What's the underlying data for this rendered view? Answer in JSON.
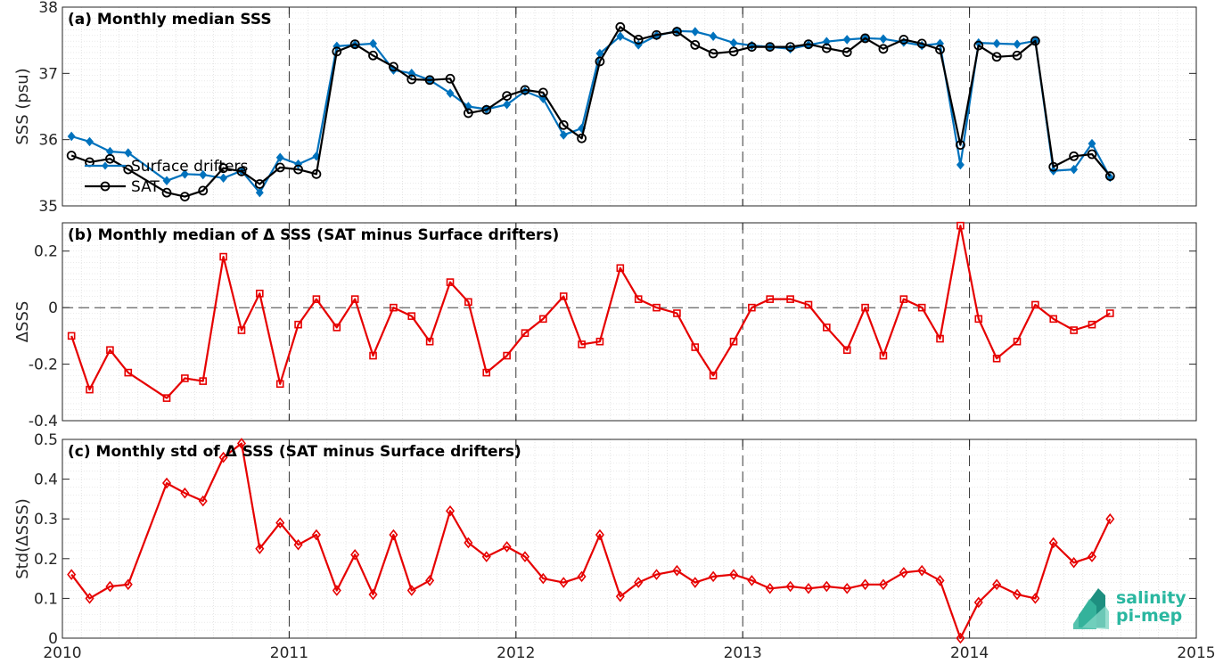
{
  "chart_data": [
    {
      "type": "line",
      "title": "(a) Monthly median SSS",
      "xlabel": "",
      "ylabel": "SSS (psu)",
      "xlim": [
        2010,
        2015
      ],
      "ylim": [
        35,
        38
      ],
      "yticks": [
        35,
        36,
        37,
        38
      ],
      "ytick_labels": [
        "35",
        "36",
        "37",
        "38"
      ],
      "grid": true,
      "legend": "bottom-left",
      "series": [
        {
          "name": "Surface drifters",
          "color": "#0072BD",
          "marker": "diamond",
          "x": [
            2010.04,
            2010.12,
            2010.21,
            2010.29,
            2010.46,
            2010.54,
            2010.62,
            2010.71,
            2010.79,
            2010.87,
            2010.96,
            2011.04,
            2011.12,
            2011.21,
            2011.29,
            2011.37,
            2011.46,
            2011.54,
            2011.62,
            2011.71,
            2011.79,
            2011.87,
            2011.96,
            2012.04,
            2012.12,
            2012.21,
            2012.29,
            2012.37,
            2012.46,
            2012.54,
            2012.62,
            2012.71,
            2012.79,
            2012.87,
            2012.96,
            2013.04,
            2013.12,
            2013.21,
            2013.29,
            2013.37,
            2013.46,
            2013.54,
            2013.62,
            2013.71,
            2013.79,
            2013.87,
            2013.96,
            2014.04,
            2014.12,
            2014.21,
            2014.29,
            2014.37,
            2014.46,
            2014.54,
            2014.62
          ],
          "values": [
            36.05,
            35.97,
            35.82,
            35.8,
            35.38,
            35.48,
            35.47,
            35.42,
            35.53,
            35.2,
            35.73,
            35.63,
            35.75,
            37.41,
            37.43,
            37.45,
            37.05,
            37.0,
            36.9,
            36.7,
            36.5,
            36.46,
            36.53,
            36.73,
            36.62,
            36.07,
            36.17,
            37.3,
            37.56,
            37.43,
            37.57,
            37.64,
            37.63,
            37.56,
            37.46,
            37.42,
            37.4,
            37.37,
            37.43,
            37.48,
            37.51,
            37.53,
            37.52,
            37.47,
            37.42,
            37.45,
            35.62,
            37.46,
            37.45,
            37.44,
            37.49,
            35.53,
            35.55,
            35.94,
            35.43
          ]
        },
        {
          "name": "SAT",
          "color": "#000000",
          "marker": "circle",
          "x": [
            2010.04,
            2010.12,
            2010.21,
            2010.29,
            2010.46,
            2010.54,
            2010.62,
            2010.71,
            2010.79,
            2010.87,
            2010.96,
            2011.04,
            2011.12,
            2011.21,
            2011.29,
            2011.37,
            2011.46,
            2011.54,
            2011.62,
            2011.71,
            2011.79,
            2011.87,
            2011.96,
            2012.04,
            2012.12,
            2012.21,
            2012.29,
            2012.37,
            2012.46,
            2012.54,
            2012.62,
            2012.71,
            2012.79,
            2012.87,
            2012.96,
            2013.04,
            2013.12,
            2013.21,
            2013.29,
            2013.37,
            2013.46,
            2013.54,
            2013.62,
            2013.71,
            2013.79,
            2013.87,
            2013.96,
            2014.04,
            2014.12,
            2014.21,
            2014.29,
            2014.37,
            2014.46,
            2014.54,
            2014.62
          ],
          "values": [
            35.76,
            35.66,
            35.71,
            35.55,
            35.2,
            35.14,
            35.23,
            35.57,
            35.52,
            35.33,
            35.58,
            35.55,
            35.48,
            37.33,
            37.44,
            37.27,
            37.1,
            36.91,
            36.9,
            36.92,
            36.4,
            36.45,
            36.66,
            36.75,
            36.71,
            36.22,
            36.02,
            37.18,
            37.7,
            37.51,
            37.58,
            37.63,
            37.43,
            37.3,
            37.33,
            37.4,
            37.4,
            37.4,
            37.44,
            37.38,
            37.32,
            37.53,
            37.37,
            37.51,
            37.45,
            37.36,
            35.92,
            37.42,
            37.25,
            37.27,
            37.49,
            35.59,
            35.75,
            35.78,
            35.45
          ]
        }
      ]
    },
    {
      "type": "line",
      "title": "(b) Monthly median of Δ SSS (SAT minus Surface drifters)",
      "xlabel": "",
      "ylabel": "ΔSSS",
      "xlim": [
        2010,
        2015
      ],
      "ylim": [
        -0.4,
        0.3
      ],
      "yticks": [
        -0.4,
        -0.2,
        0,
        0.2
      ],
      "ytick_labels": [
        "-0.4",
        "-0.2",
        "0",
        "0.2"
      ],
      "grid": true,
      "zero_line": true,
      "series": [
        {
          "color": "#E60000",
          "marker": "square",
          "x": [
            2010.04,
            2010.12,
            2010.21,
            2010.29,
            2010.46,
            2010.54,
            2010.62,
            2010.71,
            2010.79,
            2010.87,
            2010.96,
            2011.04,
            2011.12,
            2011.21,
            2011.29,
            2011.37,
            2011.46,
            2011.54,
            2011.62,
            2011.71,
            2011.79,
            2011.87,
            2011.96,
            2012.04,
            2012.12,
            2012.21,
            2012.29,
            2012.37,
            2012.46,
            2012.54,
            2012.62,
            2012.71,
            2012.79,
            2012.87,
            2012.96,
            2013.04,
            2013.12,
            2013.21,
            2013.29,
            2013.37,
            2013.46,
            2013.54,
            2013.62,
            2013.71,
            2013.79,
            2013.87,
            2013.96,
            2014.04,
            2014.12,
            2014.21,
            2014.29,
            2014.37,
            2014.46,
            2014.54,
            2014.62
          ],
          "values": [
            -0.1,
            -0.29,
            -0.15,
            -0.23,
            -0.32,
            -0.25,
            -0.26,
            0.18,
            -0.08,
            0.05,
            -0.27,
            -0.06,
            0.03,
            -0.07,
            0.03,
            -0.17,
            0.0,
            -0.03,
            -0.12,
            0.09,
            0.02,
            -0.23,
            -0.17,
            -0.09,
            -0.04,
            0.04,
            -0.13,
            -0.12,
            0.14,
            0.03,
            0.0,
            -0.02,
            -0.14,
            -0.24,
            -0.12,
            0.0,
            0.03,
            0.03,
            0.01,
            -0.07,
            -0.15,
            0.0,
            -0.17,
            0.03,
            0.0,
            -0.11,
            0.29,
            -0.04,
            -0.18,
            -0.12,
            0.01,
            -0.04,
            -0.08,
            -0.06,
            -0.02
          ]
        }
      ]
    },
    {
      "type": "line",
      "title": "(c) Monthly std of Δ SSS (SAT minus Surface drifters)",
      "xlabel": "",
      "ylabel": "Std(ΔSSS)",
      "xlim": [
        2010,
        2015
      ],
      "ylim": [
        0,
        0.5
      ],
      "yticks": [
        0,
        0.1,
        0.2,
        0.3,
        0.4,
        0.5
      ],
      "ytick_labels": [
        "0",
        "0.1",
        "0.2",
        "0.3",
        "0.4",
        "0.5"
      ],
      "xticks": [
        2010,
        2011,
        2012,
        2013,
        2014,
        2015
      ],
      "xtick_labels": [
        "2010",
        "2011",
        "2012",
        "2013",
        "2014",
        "2015"
      ],
      "grid": true,
      "series": [
        {
          "color": "#E60000",
          "marker": "diamond",
          "x": [
            2010.04,
            2010.12,
            2010.21,
            2010.29,
            2010.46,
            2010.54,
            2010.62,
            2010.71,
            2010.79,
            2010.87,
            2010.96,
            2011.04,
            2011.12,
            2011.21,
            2011.29,
            2011.37,
            2011.46,
            2011.54,
            2011.62,
            2011.71,
            2011.79,
            2011.87,
            2011.96,
            2012.04,
            2012.12,
            2012.21,
            2012.29,
            2012.37,
            2012.46,
            2012.54,
            2012.62,
            2012.71,
            2012.79,
            2012.87,
            2012.96,
            2013.04,
            2013.12,
            2013.21,
            2013.29,
            2013.37,
            2013.46,
            2013.54,
            2013.62,
            2013.71,
            2013.79,
            2013.87,
            2013.96,
            2014.04,
            2014.12,
            2014.21,
            2014.29,
            2014.37,
            2014.46,
            2014.54,
            2014.62
          ],
          "values": [
            0.16,
            0.1,
            0.13,
            0.135,
            0.39,
            0.365,
            0.345,
            0.455,
            0.49,
            0.225,
            0.29,
            0.235,
            0.26,
            0.12,
            0.21,
            0.11,
            0.26,
            0.12,
            0.145,
            0.32,
            0.24,
            0.205,
            0.23,
            0.205,
            0.15,
            0.14,
            0.155,
            0.26,
            0.105,
            0.14,
            0.16,
            0.17,
            0.14,
            0.155,
            0.16,
            0.145,
            0.125,
            0.13,
            0.125,
            0.13,
            0.125,
            0.135,
            0.135,
            0.165,
            0.17,
            0.145,
            0.0,
            0.09,
            0.135,
            0.11,
            0.1,
            0.24,
            0.19,
            0.205,
            0.3
          ]
        }
      ]
    }
  ],
  "logo": {
    "line1": "salinity",
    "line2": "pi-mep",
    "color": "#2ab7a0"
  }
}
